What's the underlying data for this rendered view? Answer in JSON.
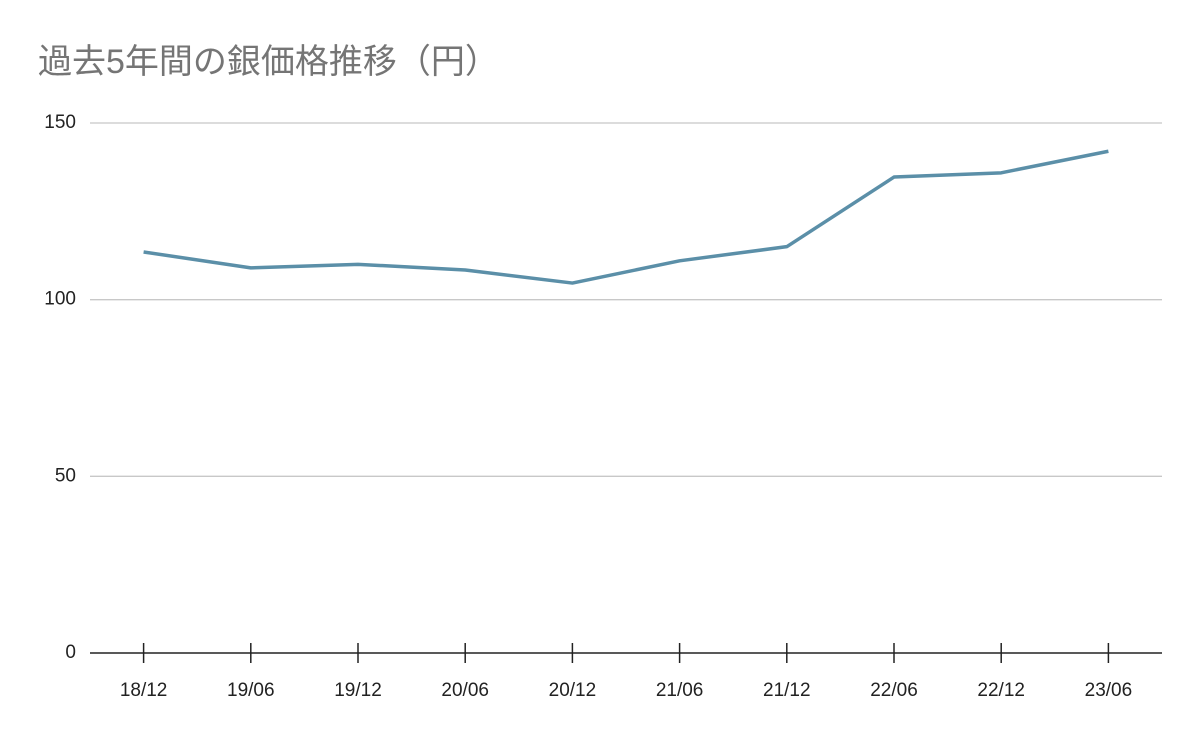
{
  "chart_data": {
    "type": "line",
    "title": "過去5年間の銀価格推移（円）",
    "categories": [
      "18/12",
      "19/06",
      "19/12",
      "20/06",
      "20/12",
      "21/06",
      "21/12",
      "22/06",
      "22/12",
      "23/06"
    ],
    "values": [
      113.5,
      109,
      110,
      108.4,
      104.7,
      111,
      115,
      134.7,
      135.9,
      142
    ],
    "color": "#5b8fa8",
    "ylim": [
      0,
      150
    ],
    "yticks": [
      0,
      50,
      100,
      150
    ],
    "grid": true
  }
}
